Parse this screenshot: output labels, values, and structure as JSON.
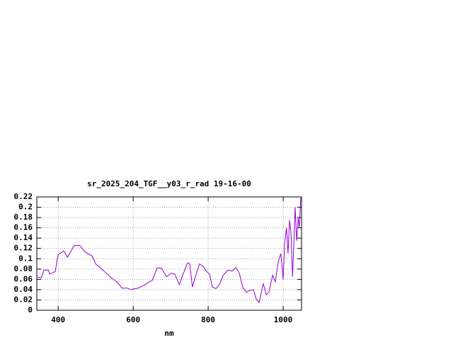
{
  "chart_data": {
    "type": "line",
    "title": "sr_2025_204_TGF__y03_r_rad 19-16-00",
    "x_label": "nm",
    "series": [
      {
        "color": "#9400d3",
        "x": [
          343,
          355,
          362,
          374,
          377,
          392,
          400,
          415,
          425,
          443,
          457,
          472,
          491,
          500,
          519,
          543,
          557,
          570,
          585,
          594,
          613,
          628,
          642,
          651,
          664,
          675,
          689,
          702,
          711,
          723,
          732,
          745,
          751,
          758,
          770,
          777,
          787,
          796,
          804,
          811,
          821,
          830,
          840,
          853,
          864,
          874,
          883,
          892,
          902,
          909,
          921,
          928,
          936,
          947,
          955,
          962,
          972,
          979,
          987,
          994,
          1000,
          1004,
          1009,
          1013,
          1017,
          1021,
          1025,
          1028,
          1032,
          1036,
          1040,
          1043,
          1047
        ],
        "values": [
          0.065,
          0.063,
          0.078,
          0.078,
          0.07,
          0.075,
          0.108,
          0.115,
          0.103,
          0.126,
          0.126,
          0.113,
          0.105,
          0.09,
          0.078,
          0.062,
          0.055,
          0.043,
          0.043,
          0.04,
          0.043,
          0.048,
          0.055,
          0.058,
          0.082,
          0.082,
          0.065,
          0.072,
          0.07,
          0.05,
          0.068,
          0.092,
          0.09,
          0.045,
          0.075,
          0.09,
          0.085,
          0.075,
          0.07,
          0.045,
          0.042,
          0.05,
          0.068,
          0.078,
          0.076,
          0.083,
          0.072,
          0.045,
          0.035,
          0.038,
          0.04,
          0.022,
          0.015,
          0.052,
          0.03,
          0.035,
          0.068,
          0.055,
          0.095,
          0.11,
          0.06,
          0.13,
          0.16,
          0.11,
          0.175,
          0.15,
          0.065,
          0.12,
          0.2,
          0.135,
          0.18,
          0.16,
          0.22
        ]
      }
    ],
    "xlim": [
      343,
      1049
    ],
    "xticks": [
      400,
      600,
      800,
      1000
    ],
    "ylim": [
      0,
      0.22
    ],
    "yticks": [
      0,
      0.02,
      0.04,
      0.06,
      0.08,
      0.1,
      0.12,
      0.14,
      0.16,
      0.18,
      0.2,
      0.22
    ],
    "grid": true
  }
}
